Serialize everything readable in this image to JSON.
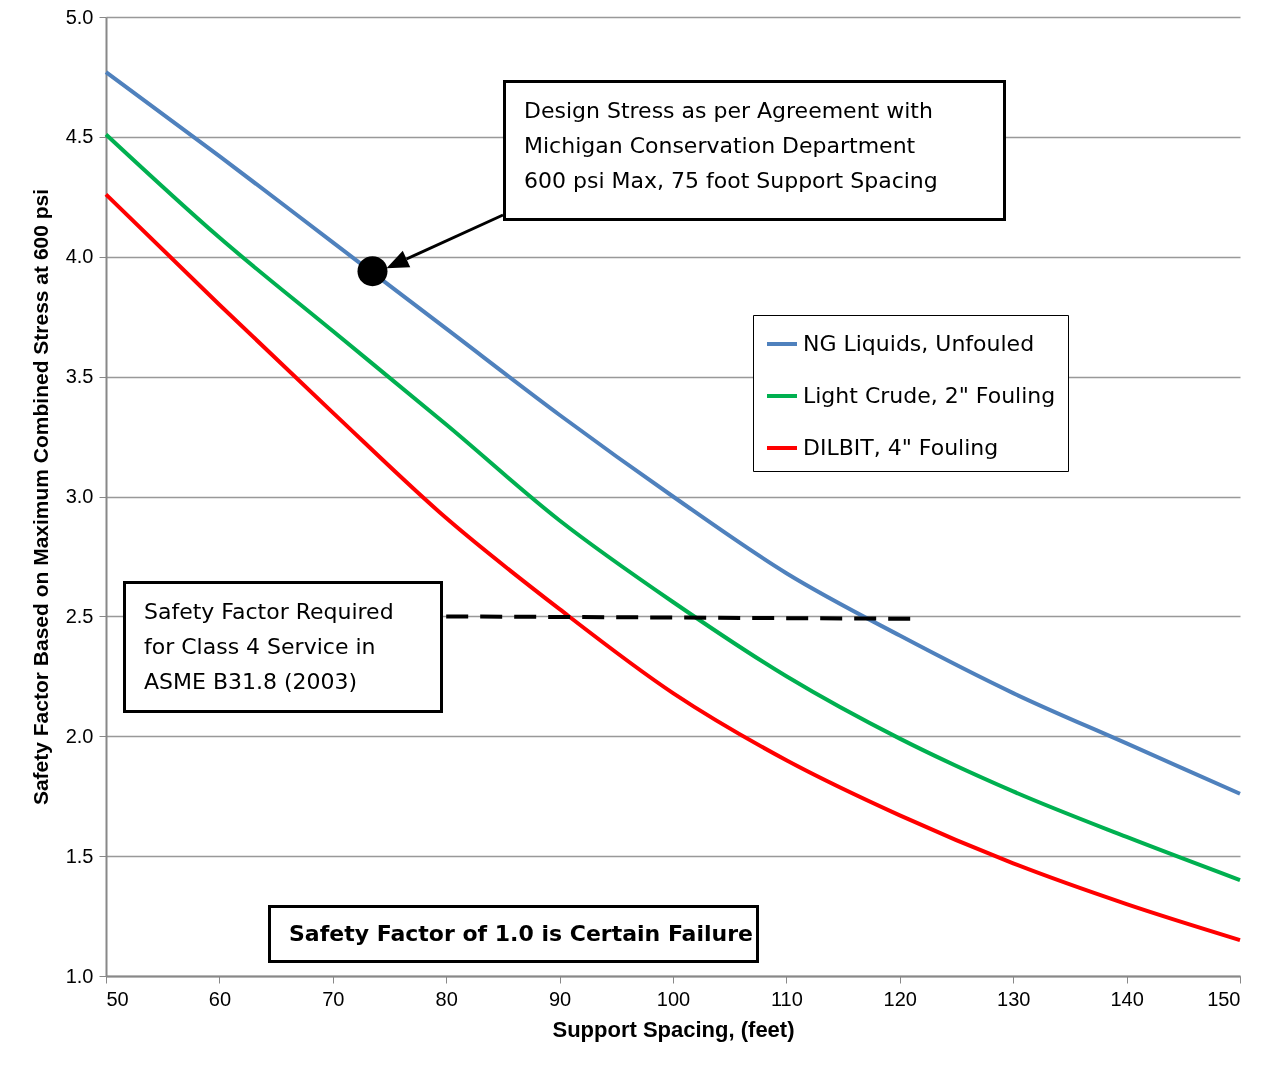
{
  "chart_data": {
    "type": "line",
    "xlabel": "Support Spacing, (feet)",
    "ylabel": "Safety Factor Based on Maximum Combined Stress at 600 psi",
    "xlim": [
      50,
      150
    ],
    "ylim": [
      1.0,
      5.0
    ],
    "xticks": [
      50,
      60,
      70,
      80,
      90,
      100,
      110,
      120,
      130,
      140,
      150
    ],
    "yticks": [
      {
        "value": 1,
        "label": "1.0"
      },
      {
        "value": 1.5,
        "label": "1.5"
      },
      {
        "value": 2,
        "label": "2.0"
      },
      {
        "value": 2.5,
        "label": "2.5"
      },
      {
        "value": 3,
        "label": "3.0"
      },
      {
        "value": 3.5,
        "label": "3.5"
      },
      {
        "value": 4,
        "label": "4.0"
      },
      {
        "value": 4.5,
        "label": "4.5"
      },
      {
        "value": 5,
        "label": "5.0"
      }
    ],
    "grid": "y",
    "legend": "right",
    "line_style": "solid",
    "x": [
      50,
      60,
      70,
      80,
      90,
      100,
      110,
      120,
      130,
      140,
      150
    ],
    "series": [
      {
        "name": "NG Liquids, Unfouled",
        "color": "#4f81bd",
        "values": [
          4.77,
          4.42,
          4.06,
          3.7,
          3.34,
          3.0,
          2.68,
          2.42,
          2.18,
          1.97,
          1.76
        ]
      },
      {
        "name": "Light Crude, 2\" Fouling",
        "color": "#00b050",
        "values": [
          4.51,
          4.08,
          3.69,
          3.3,
          2.9,
          2.56,
          2.25,
          1.99,
          1.77,
          1.58,
          1.4
        ]
      },
      {
        "name": "DILBIT, 4\" Fouling",
        "color": "#ff0000",
        "values": [
          4.26,
          3.8,
          3.35,
          2.91,
          2.53,
          2.18,
          1.9,
          1.67,
          1.47,
          1.3,
          1.15
        ]
      },
      {
        "type": "line",
        "color": "#000000",
        "line_style": "dashed",
        "x": [
          80,
          121
        ],
        "values": [
          2.5,
          2.49
        ]
      },
      {
        "type": "scatter",
        "color": "#000000",
        "marker": "circle",
        "x": [
          73.5
        ],
        "values": [
          3.94
        ]
      }
    ],
    "annotations": [
      "Design Stress as per Agreement with\nMichigan Conservation Department\n600 psi Max, 75 foot Support Spacing",
      "Safety Factor Required\nfor Class 4 Service in\nASME B31.8 (2003)",
      "Safety Factor of 1.0 is Certain Failure"
    ]
  }
}
